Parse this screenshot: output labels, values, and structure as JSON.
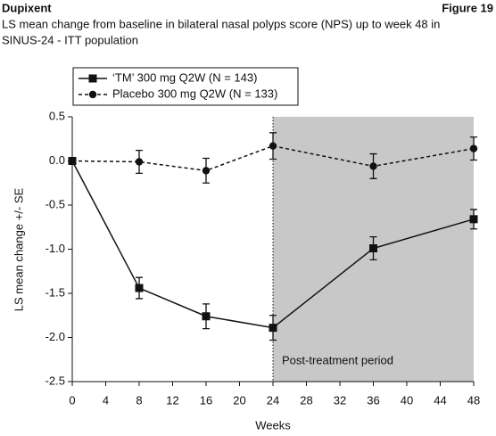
{
  "header": {
    "left": "Dupixent",
    "right": "Figure 19"
  },
  "chart_data": {
    "type": "line",
    "title": [
      "LS mean change from baseline in bilateral nasal polyps score (NPS) up to week 48 in",
      "SINUS-24 - ITT population"
    ],
    "x_label": "Weeks",
    "y_label": "LS mean change +/- SE",
    "x": [
      0,
      8,
      16,
      24,
      36,
      48
    ],
    "series": [
      {
        "name": "‘TM’ 300 mg Q2W (N = 143)",
        "color": "#111111",
        "line_style": "solid",
        "marker": "square",
        "values": [
          0,
          -1.44,
          -1.76,
          -1.89,
          -0.99,
          -0.66
        ],
        "errors": [
          0,
          0.12,
          0.14,
          0.14,
          0.13,
          0.11
        ]
      },
      {
        "name": "Placebo 300 mg Q2W (N = 133)",
        "color": "#111111",
        "line_style": "dashed",
        "marker": "circle",
        "values": [
          0,
          -0.01,
          -0.11,
          0.17,
          -0.06,
          0.14
        ],
        "errors": [
          0,
          0.13,
          0.14,
          0.15,
          0.14,
          0.13
        ]
      }
    ],
    "xlim": [
      0,
      48
    ],
    "xticks": [
      0,
      4,
      8,
      12,
      16,
      20,
      24,
      28,
      32,
      36,
      40,
      44,
      48
    ],
    "ylim": [
      -2.5,
      0.5
    ],
    "yticks": [
      0.5,
      {
        "value": 0,
        "label": "0.0"
      },
      -0.5,
      {
        "value": -1,
        "label": "-1.0"
      },
      -1.5,
      {
        "value": -2,
        "label": "-2.0"
      },
      -2.5
    ],
    "shaded_region": {
      "from": 24,
      "to": 48,
      "color": "#c8c8c8",
      "label": "Post-treatment period"
    },
    "legend": "upper left",
    "grid": false
  }
}
